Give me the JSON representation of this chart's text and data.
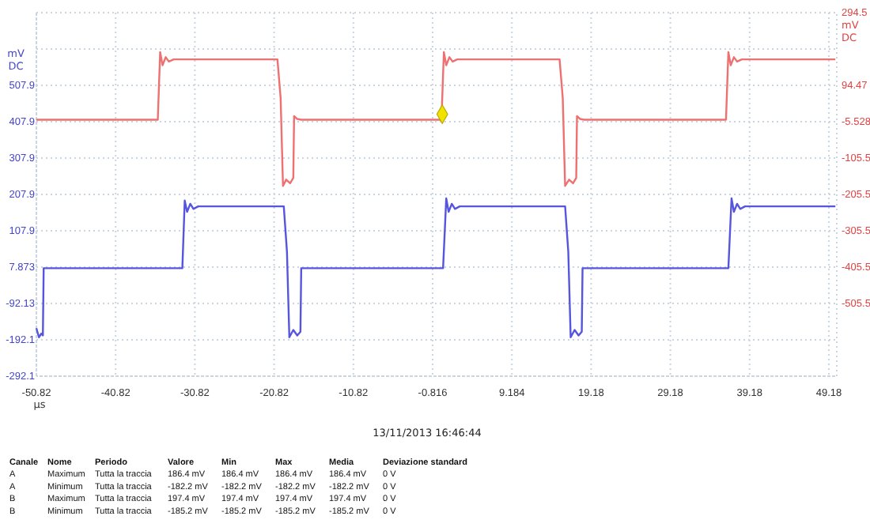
{
  "chart_data": {
    "type": "line",
    "xlabel": "μs",
    "ylabel": "mV DC",
    "y2label": "mV DC",
    "xlim": [
      -50.82,
      50.18
    ],
    "xticks": [
      -50.82,
      -40.82,
      -30.82,
      -20.82,
      -10.82,
      -0.816,
      9.184,
      19.18,
      29.18,
      39.18,
      49.18
    ],
    "ylim": [
      -292.1,
      707.9
    ],
    "yticks": [
      -292.1,
      -192.1,
      -92.13,
      7.873,
      107.9,
      207.9,
      307.9,
      407.9,
      507.9,
      {
        "value": 607.9,
        "label": null
      }
    ],
    "y2lim": [
      -705.5,
      294.5
    ],
    "y2ticks": [
      -505.5,
      -405.5,
      -305.5,
      -205.5,
      -105.5,
      -5.528,
      94.47,
      294.5
    ],
    "grid": true,
    "series": [
      {
        "type": "line",
        "axis": "y2",
        "color": "#ee7070",
        "x": [
          -50.82,
          -35.5,
          -35.2,
          -34.9,
          -34.5,
          -34.1,
          -33.5,
          -20.4,
          -20.0,
          -19.7,
          -19.3,
          -18.8,
          -18.4,
          -18.3,
          -17.9,
          -17.4,
          0.3,
          0.6,
          0.9,
          1.3,
          1.7,
          2.3,
          15.2,
          15.6,
          15.9,
          16.4,
          16.9,
          17.3,
          17.4,
          17.8,
          18.3,
          36.2,
          36.5,
          36.8,
          37.2,
          37.6,
          38.2,
          50.0
        ],
        "values": [
          0,
          0,
          186,
          150,
          172,
          160,
          166,
          166,
          60,
          -182,
          -165,
          -175,
          -160,
          10,
          2,
          0,
          0,
          186,
          150,
          172,
          160,
          166,
          166,
          60,
          -182,
          -165,
          -175,
          -160,
          10,
          2,
          0,
          0,
          186,
          150,
          172,
          160,
          166,
          166
        ]
      },
      {
        "type": "line",
        "axis": "y",
        "color": "#5555dd",
        "x": [
          -50.82,
          -50.5,
          -50.2,
          -50.0,
          -49.9,
          -32.4,
          -32.1,
          -31.8,
          -31.4,
          -31.0,
          -30.4,
          -19.6,
          -19.2,
          -18.9,
          -18.4,
          -17.9,
          -17.5,
          -17.4,
          0.5,
          0.9,
          1.2,
          1.6,
          2.0,
          2.6,
          15.9,
          16.3,
          16.6,
          17.1,
          17.6,
          18.0,
          18.1,
          36.5,
          36.9,
          37.2,
          37.6,
          38.0,
          38.6,
          50.0
        ],
        "values": [
          -160,
          -185,
          -175,
          -180,
          5,
          5,
          191,
          160,
          182,
          168,
          175,
          175,
          50,
          -185,
          -165,
          -180,
          -170,
          5,
          5,
          197,
          160,
          182,
          168,
          175,
          175,
          50,
          -185,
          -165,
          -180,
          -170,
          5,
          5,
          197,
          160,
          182,
          168,
          175,
          175
        ]
      },
      {
        "type": "scatter",
        "axis": "y2",
        "color": "#f2e200",
        "marker": "diamond",
        "x": [
          0.4
        ],
        "values": [
          15
        ]
      }
    ],
    "annotations": [
      "13/11/2013 16:46:44",
      "Canale",
      "Nome",
      "Periodo",
      "Valore",
      "Min",
      "Max",
      "Media",
      "Deviazione standard",
      "A",
      "Maximum",
      "Tutta la traccia",
      "186.4 mV",
      "186.4 mV",
      "186.4 mV",
      "186.4 mV",
      "0 V",
      "A",
      "Minimum",
      "Tutta la traccia",
      "-182.2 mV",
      "-182.2 mV",
      "-182.2 mV",
      "-182.2 mV",
      "0 V",
      "B",
      "Maximum",
      "Tutta la traccia",
      "197.4 mV",
      "197.4 mV",
      "197.4 mV",
      "197.4 mV",
      "0 V",
      "B",
      "Minimum",
      "Tutta la traccia",
      "-185.2 mV",
      "-185.2 mV",
      "-185.2 mV",
      "-185.2 mV",
      "0 V"
    ]
  }
}
